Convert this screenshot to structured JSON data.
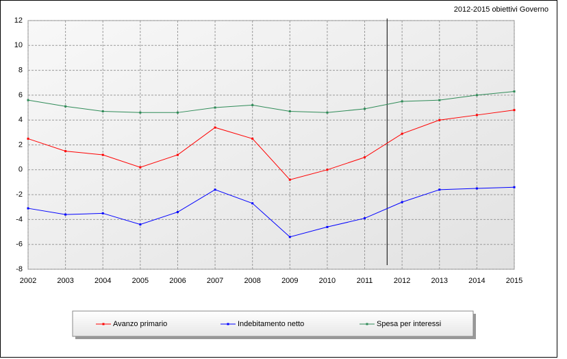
{
  "chart_data": {
    "type": "line",
    "annotation": "2012-2015 obiettivi Governo",
    "x": [
      2002,
      2003,
      2004,
      2005,
      2006,
      2007,
      2008,
      2009,
      2010,
      2011,
      2012,
      2013,
      2014,
      2015
    ],
    "series": [
      {
        "name": "Avanzo primario",
        "color": "#ff0000",
        "values": [
          2.5,
          1.5,
          1.2,
          0.2,
          1.2,
          3.4,
          2.5,
          -0.8,
          0,
          1.0,
          2.9,
          4.0,
          4.4,
          4.8
        ]
      },
      {
        "name": "Indebitamento netto",
        "color": "#0000ff",
        "values": [
          -3.1,
          -3.6,
          -3.5,
          -4.4,
          -3.4,
          -1.6,
          -2.7,
          -5.4,
          -4.6,
          -3.9,
          -2.6,
          -1.6,
          -1.5,
          -1.4
        ]
      },
      {
        "name": "Spesa per interessi",
        "color": "#2e8b57",
        "values": [
          5.6,
          5.1,
          4.7,
          4.6,
          4.6,
          5.0,
          5.2,
          4.7,
          4.6,
          4.9,
          5.5,
          5.6,
          6.0,
          6.3
        ]
      }
    ],
    "marker_x": 2011.6,
    "xlim": [
      2002,
      2015
    ],
    "xticks": [
      2002,
      2003,
      2004,
      2005,
      2006,
      2007,
      2008,
      2009,
      2010,
      2011,
      2012,
      2013,
      2014,
      2015
    ],
    "ylim": [
      -8,
      12
    ],
    "yticks": [
      -8,
      -6,
      -4,
      -2,
      0,
      2,
      4,
      6,
      8,
      10,
      12
    ],
    "grid": true
  }
}
